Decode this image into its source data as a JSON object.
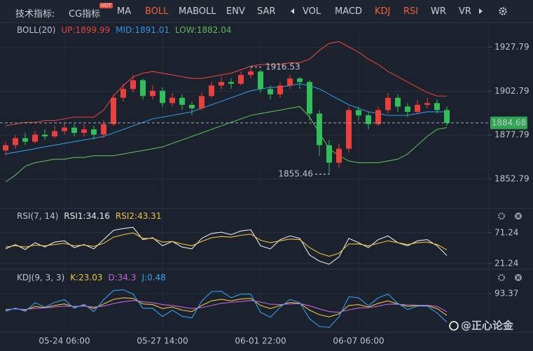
{
  "toolbar": {
    "title": "技术指标:",
    "active_color": "#f0603a",
    "tabs": [
      {
        "label": "CG指标",
        "badge": "HOT"
      },
      {
        "label": "MA"
      },
      {
        "label": "BOLL",
        "active": true
      },
      {
        "label": "MABOLL"
      },
      {
        "label": "ENV"
      },
      {
        "label": "SAR"
      },
      {
        "label": "VOL"
      },
      {
        "label": "MACD"
      },
      {
        "label": "KDJ",
        "active": true
      },
      {
        "label": "RSI",
        "active": true
      },
      {
        "label": "WR"
      },
      {
        "label": "VR"
      }
    ]
  },
  "watermark": "@正心论金",
  "chart_data": [
    {
      "type": "candlestick",
      "indicator": "BOLL(20)",
      "up_color": "#e8403c",
      "down_color": "#2fbf5b",
      "price_label_color": "#2fa552",
      "grid": true,
      "categories": [
        null,
        null,
        null,
        null,
        null,
        null,
        "05-24 06:00",
        null,
        null,
        null,
        null,
        null,
        null,
        null,
        null,
        null,
        "05-27 14:00",
        null,
        null,
        null,
        null,
        null,
        null,
        null,
        null,
        null,
        "06-01 22:00",
        null,
        null,
        null,
        null,
        null,
        null,
        null,
        null,
        null,
        "06-07 06:00",
        null,
        null,
        null,
        null,
        null,
        null,
        null,
        null,
        null
      ],
      "open": [
        1869,
        1872,
        1876,
        1874,
        1878,
        1877,
        1880,
        1882,
        1879,
        1881,
        1878,
        1884,
        1899,
        1904,
        1909,
        1900,
        1903,
        1896,
        1899,
        1895,
        1893,
        1900,
        1906,
        1908,
        1907,
        1912,
        1914,
        1904,
        1901,
        1906,
        1910,
        1908,
        1890,
        1872,
        1862,
        1870,
        1892,
        1889,
        1884,
        1892,
        1899,
        1894,
        1891,
        1895,
        1896,
        1892
      ],
      "high": [
        1874,
        1878,
        1879,
        1880,
        1881,
        1883,
        1885,
        1884,
        1884,
        1883,
        1886,
        1901,
        1907,
        1912,
        1910,
        1906,
        1905,
        1902,
        1901,
        1897,
        1902,
        1908,
        1911,
        1910,
        1914,
        1916.53,
        1915,
        1906,
        1908,
        1912,
        1911,
        1909,
        1892,
        1875,
        1873,
        1894,
        1894,
        1891,
        1894,
        1902,
        1901,
        1896,
        1898,
        1899,
        1898,
        1894
      ],
      "low": [
        1866,
        1870,
        1872,
        1873,
        1875,
        1876,
        1878,
        1877,
        1877,
        1875,
        1876,
        1883,
        1897,
        1902,
        1898,
        1898,
        1894,
        1894,
        1892,
        1889,
        1892,
        1899,
        1904,
        1904,
        1906,
        1910,
        1902,
        1898,
        1899,
        1904,
        1904,
        1886,
        1866,
        1855.46,
        1859,
        1868,
        1886,
        1881,
        1883,
        1890,
        1891,
        1888,
        1890,
        1893,
        1890,
        1883
      ],
      "close": [
        1872,
        1876,
        1874,
        1878,
        1877,
        1880,
        1882,
        1879,
        1881,
        1878,
        1884,
        1899,
        1904,
        1909,
        1900,
        1903,
        1896,
        1899,
        1895,
        1893,
        1900,
        1906,
        1908,
        1907,
        1912,
        1914,
        1904,
        1901,
        1906,
        1910,
        1908,
        1890,
        1872,
        1862,
        1870,
        1892,
        1889,
        1884,
        1892,
        1899,
        1894,
        1891,
        1895,
        1896,
        1892,
        1884.68
      ],
      "series": [
        {
          "name": "UP:",
          "color": "#e0463e",
          "values": [
            1883,
            1884,
            1885,
            1885,
            1886,
            1886,
            1887,
            1888,
            1888,
            1888,
            1892,
            1900,
            1906,
            1911,
            1913,
            1914,
            1913,
            1912,
            1911,
            1910,
            1910,
            1911,
            1912,
            1913,
            1915,
            1917,
            1918,
            1918,
            1918,
            1919,
            1919,
            1921,
            1926,
            1930,
            1931,
            1928,
            1925,
            1921,
            1918,
            1914,
            1911,
            1908,
            1905,
            1902,
            1900,
            1899.99
          ]
        },
        {
          "name": "MID:",
          "color": "#2f96e0",
          "values": [
            1867,
            1868,
            1869,
            1870,
            1871,
            1872,
            1873,
            1874,
            1875,
            1876,
            1877,
            1879,
            1881,
            1883,
            1885,
            1887,
            1888,
            1889,
            1890,
            1891,
            1893,
            1895,
            1897,
            1899,
            1901,
            1903,
            1904,
            1905,
            1905,
            1906,
            1907,
            1906,
            1904,
            1901,
            1898,
            1895,
            1893,
            1891,
            1890,
            1889,
            1889,
            1889,
            1890,
            1891,
            1891,
            1891.01
          ]
        },
        {
          "name": "LOW:",
          "color": "#5cb85c",
          "values": [
            1851,
            1855,
            1860,
            1862,
            1863,
            1864,
            1864,
            1865,
            1865,
            1866,
            1866,
            1866,
            1867,
            1868,
            1869,
            1870,
            1871,
            1873,
            1875,
            1877,
            1879,
            1881,
            1883,
            1885,
            1887,
            1889,
            1890,
            1891,
            1892,
            1893,
            1894,
            1888,
            1879,
            1870,
            1866,
            1863,
            1862,
            1862,
            1862,
            1863,
            1864,
            1867,
            1872,
            1877,
            1881,
            1882.04
          ]
        }
      ],
      "ylim": [
        1836,
        1934
      ],
      "yticks": [
        1927.79,
        1902.79,
        1877.79,
        1852.79
      ]
    },
    {
      "type": "line",
      "indicator": "RSI(7, 14)",
      "grid": true,
      "series": [
        {
          "name": "RSI1:",
          "color": "#e6e8ec",
          "values": [
            45,
            52,
            44,
            55,
            48,
            56,
            58,
            47,
            52,
            45,
            60,
            75,
            78,
            80,
            60,
            63,
            50,
            57,
            48,
            45,
            62,
            70,
            72,
            68,
            74,
            76,
            50,
            45,
            60,
            66,
            62,
            35,
            25,
            20,
            32,
            62,
            55,
            47,
            60,
            66,
            55,
            50,
            58,
            60,
            50,
            34.16
          ]
        },
        {
          "name": "RSI2:",
          "color": "#f0c23a",
          "values": [
            48,
            50,
            48,
            51,
            50,
            52,
            54,
            50,
            51,
            49,
            54,
            64,
            68,
            71,
            62,
            62,
            56,
            57,
            53,
            50,
            57,
            63,
            65,
            64,
            67,
            69,
            59,
            55,
            58,
            61,
            60,
            47,
            38,
            33,
            38,
            53,
            53,
            50,
            54,
            58,
            55,
            52,
            55,
            56,
            52,
            43.31
          ]
        }
      ],
      "ylim": [
        12,
        88
      ],
      "yticks": [
        71.24,
        21.24
      ]
    },
    {
      "type": "line",
      "indicator": "KDJ(9, 3, 3)",
      "grid": true,
      "series": [
        {
          "name": "K:",
          "color": "#f0c23a",
          "values": [
            40,
            45,
            40,
            52,
            48,
            55,
            60,
            50,
            55,
            45,
            60,
            75,
            80,
            78,
            60,
            58,
            45,
            50,
            40,
            35,
            55,
            70,
            75,
            70,
            76,
            78,
            55,
            45,
            55,
            65,
            62,
            40,
            25,
            18,
            28,
            55,
            58,
            50,
            62,
            70,
            60,
            52,
            55,
            55,
            45,
            23.03
          ]
        },
        {
          "name": "D:",
          "color": "#c064de",
          "values": [
            42,
            44,
            42,
            46,
            47,
            50,
            53,
            52,
            53,
            50,
            53,
            61,
            67,
            71,
            67,
            64,
            58,
            55,
            50,
            45,
            48,
            55,
            62,
            65,
            68,
            71,
            66,
            59,
            58,
            60,
            61,
            54,
            44,
            35,
            33,
            41,
            47,
            48,
            53,
            59,
            59,
            57,
            56,
            56,
            52,
            34.3
          ]
        },
        {
          "name": "J:",
          "color": "#2ea3f2",
          "values": [
            36,
            47,
            36,
            64,
            50,
            65,
            74,
            46,
            59,
            35,
            74,
            103,
            106,
            92,
            46,
            46,
            19,
            40,
            20,
            15,
            69,
            100,
            101,
            80,
            92,
            92,
            33,
            17,
            49,
            75,
            64,
            12,
            -13,
            -16,
            18,
            83,
            80,
            54,
            80,
            92,
            62,
            42,
            53,
            53,
            31,
            0.48
          ]
        }
      ],
      "ylim": [
        -20,
        125
      ],
      "yticks": [
        93.37
      ]
    }
  ]
}
